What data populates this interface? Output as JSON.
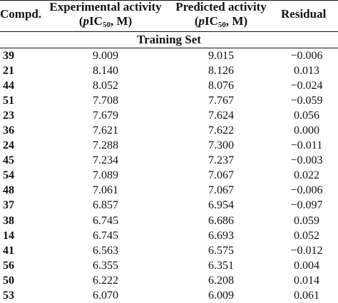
{
  "table": {
    "headers": {
      "compd": "Compd.",
      "experimental_line1": "Experimental activity",
      "experimental_p": "p",
      "experimental_ic": "IC",
      "experimental_sub": "50",
      "experimental_unit": ", M)",
      "predicted_line1": "Predicted activity",
      "predicted_p": "p",
      "predicted_ic": "IC",
      "predicted_sub": "50",
      "predicted_unit": ", M)",
      "residual": "Residual"
    },
    "section_title": "Training Set",
    "rows": [
      {
        "compd": "39",
        "experimental": "9.009",
        "predicted": "9.015",
        "residual": "−0.006"
      },
      {
        "compd": "21",
        "experimental": "8.140",
        "predicted": "8.126",
        "residual": "0.013"
      },
      {
        "compd": "44",
        "experimental": "8.052",
        "predicted": "8.076",
        "residual": "−0.024"
      },
      {
        "compd": "51",
        "experimental": "7.708",
        "predicted": "7.767",
        "residual": "−0.059"
      },
      {
        "compd": "23",
        "experimental": "7.679",
        "predicted": "7.624",
        "residual": "0.056"
      },
      {
        "compd": "36",
        "experimental": "7.621",
        "predicted": "7.622",
        "residual": "0.000"
      },
      {
        "compd": "24",
        "experimental": "7.288",
        "predicted": "7.300",
        "residual": "−0.011"
      },
      {
        "compd": "45",
        "experimental": "7.234",
        "predicted": "7.237",
        "residual": "−0.003"
      },
      {
        "compd": "54",
        "experimental": "7.089",
        "predicted": "7.067",
        "residual": "0.022"
      },
      {
        "compd": "48",
        "experimental": "7.061",
        "predicted": "7.067",
        "residual": "−0.006"
      },
      {
        "compd": "37",
        "experimental": "6.857",
        "predicted": "6.954",
        "residual": "−0.097"
      },
      {
        "compd": "38",
        "experimental": "6.745",
        "predicted": "6.686",
        "residual": "0.059"
      },
      {
        "compd": "14",
        "experimental": "6.745",
        "predicted": "6.693",
        "residual": "0.052"
      },
      {
        "compd": "41",
        "experimental": "6.563",
        "predicted": "6.575",
        "residual": "−0.012"
      },
      {
        "compd": "56",
        "experimental": "6.355",
        "predicted": "6.351",
        "residual": "0.004"
      },
      {
        "compd": "50",
        "experimental": "6.222",
        "predicted": "6.208",
        "residual": "0.014"
      },
      {
        "compd": "53",
        "experimental": "6.070",
        "predicted": "6.009",
        "residual": "0.061"
      }
    ]
  }
}
